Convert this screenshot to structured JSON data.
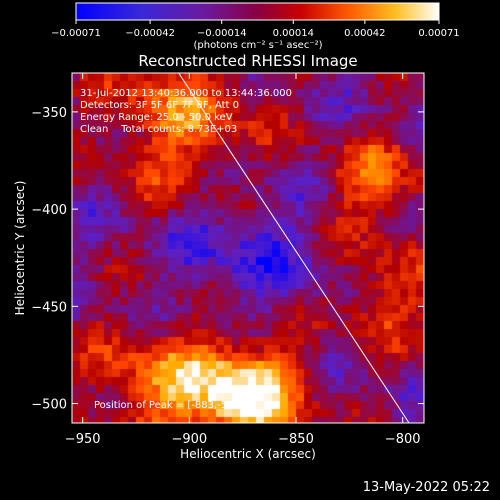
{
  "chart_data": {
    "type": "heatmap",
    "title": "Reconstructed RHESSI Image",
    "xlabel": "Heliocentric X (arcsec)",
    "ylabel": "Heliocentric Y (arcsec)",
    "xlim": [
      -955,
      -790
    ],
    "ylim": [
      -510,
      -330
    ],
    "xticks": [
      -950,
      -900,
      -850,
      -800
    ],
    "yticks": [
      -350,
      -400,
      -450,
      -500
    ],
    "xtick_labels": [
      "−950",
      "−900",
      "−850",
      "−800"
    ],
    "ytick_labels": [
      "−350",
      "−400",
      "−450",
      "−500"
    ],
    "colorbar": {
      "ticks": [
        -0.00071,
        -0.00042,
        -0.00014,
        0.00014,
        0.00042,
        0.00071
      ],
      "tick_labels": [
        "−0.00071",
        "−0.00042",
        "−0.00014",
        "0.00014",
        "0.00042",
        "0.00071"
      ],
      "units": "(photons cm⁻² s⁻¹ asec⁻²)",
      "range": [
        -0.00071,
        0.00071
      ],
      "colors": [
        "#0000ff",
        "#5a20c8",
        "#7a1078",
        "#b40000",
        "#ff4400",
        "#ffaa00",
        "#ffffff"
      ]
    },
    "annotations": [
      "31-Jul-2012 13:40:36.000 to 13:44:36.000",
      "Detectors: 3F 5F 6F 7F 8F, Att 0",
      "Energy Range: 25.0 - 50.0 keV",
      "Clean    Total counts: 8.73E+03"
    ],
    "peak_label": "Position of Peak = [-883,-503]",
    "limb_line": {
      "x": [
        -905,
        -797
      ],
      "y": [
        -330,
        -510
      ]
    }
  },
  "footer": {
    "timestamp": "13-May-2022 05:22"
  }
}
